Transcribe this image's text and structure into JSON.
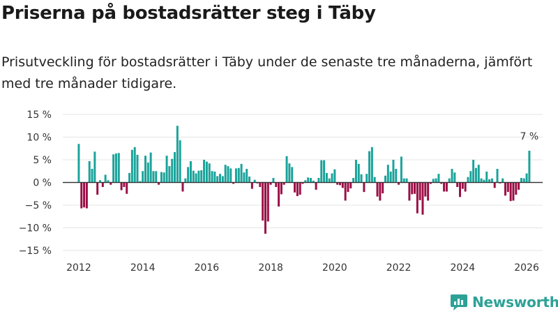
{
  "header": {
    "title": "Priserna på bostadsrätter steg i Täby",
    "subtitle": "Prisutveckling för bostadsrätter i Täby under de senaste tre månaderna, jämfört med tre månader tidigare."
  },
  "brand": {
    "name": "Newsworthy"
  },
  "colors": {
    "positive": "#1aa39a",
    "negative": "#9b0f46",
    "grid": "#e4e4e4",
    "brand": "#2ea196"
  },
  "chart_data": {
    "type": "bar",
    "title": "Priserna på bostadsrätter steg i Täby",
    "xlabel": "",
    "ylabel": "",
    "x_start": {
      "year": 2012,
      "month": 1
    },
    "x_range": [
      2011.5,
      2026.5
    ],
    "ylim": [
      -15,
      15
    ],
    "xticks": [
      2012,
      2014,
      2016,
      2018,
      2020,
      2022,
      2024,
      2026
    ],
    "xtick_labels": [
      "2012",
      "2014",
      "2016",
      "2018",
      "2020",
      "2022",
      "2024",
      "2026"
    ],
    "yticks": [
      -15,
      -10,
      -5,
      0,
      5,
      10,
      15
    ],
    "ytick_labels": [
      "−15 %",
      "−10 %",
      "−5 %",
      "0 %",
      "5 %",
      "10 %",
      "15 %"
    ],
    "annotation": {
      "label": "7 %",
      "value": 7
    },
    "values": [
      8.5,
      -5.7,
      -5.5,
      -5.7,
      4.7,
      3.0,
      6.8,
      -2.7,
      0.5,
      -1.0,
      1.7,
      0.5,
      -0.5,
      6.2,
      6.4,
      6.5,
      -1.7,
      -1.0,
      -2.5,
      2.1,
      7.2,
      7.8,
      6.1,
      0.3,
      2.5,
      5.9,
      4.4,
      6.6,
      2.5,
      2.5,
      -0.5,
      2.3,
      2.2,
      5.9,
      3.6,
      5.2,
      6.7,
      12.5,
      9.3,
      -2.0,
      0.9,
      3.4,
      4.7,
      2.6,
      2.0,
      2.6,
      2.7,
      5.0,
      4.6,
      4.2,
      2.5,
      2.4,
      1.4,
      1.9,
      1.4,
      3.9,
      3.6,
      3.1,
      -0.3,
      3.1,
      3.2,
      4.1,
      2.2,
      3.0,
      1.3,
      -1.4,
      0.6,
      -0.2,
      -1.0,
      -8.4,
      -11.3,
      -8.6,
      -0.5,
      1.0,
      -1.0,
      -5.3,
      -2.6,
      -0.5,
      5.8,
      4.2,
      3.4,
      -2.2,
      -3.0,
      -2.7,
      -0.3,
      0.5,
      1.1,
      1.0,
      0.4,
      -1.6,
      1.0,
      4.9,
      4.9,
      2.1,
      0.9,
      2.0,
      2.9,
      -0.5,
      -0.6,
      -1.2,
      -4.0,
      -2.1,
      -1.3,
      1.0,
      5.0,
      4.1,
      1.8,
      -2.1,
      1.9,
      6.9,
      7.8,
      1.2,
      -3.1,
      -4.0,
      -2.4,
      1.5,
      3.9,
      2.4,
      5.0,
      3.0,
      -0.5,
      5.7,
      0.9,
      0.9,
      -4.0,
      -2.6,
      -2.5,
      -6.8,
      -3.9,
      -7.1,
      -3.1,
      -4.0,
      -0.3,
      0.8,
      0.9,
      1.9,
      -0.3,
      -2.0,
      -2.0,
      0.9,
      3.0,
      2.2,
      -1.0,
      -3.2,
      -1.4,
      -2.0,
      1.2,
      2.5,
      5.0,
      3.2,
      3.9,
      0.9,
      0.6,
      2.4,
      0.7,
      0.9,
      -1.2,
      3.0,
      -0.2,
      0.9,
      -2.9,
      -2.1,
      -4.1,
      -4.0,
      -2.7,
      -1.6,
      1.0,
      0.9,
      2.0,
      7.0
    ]
  }
}
